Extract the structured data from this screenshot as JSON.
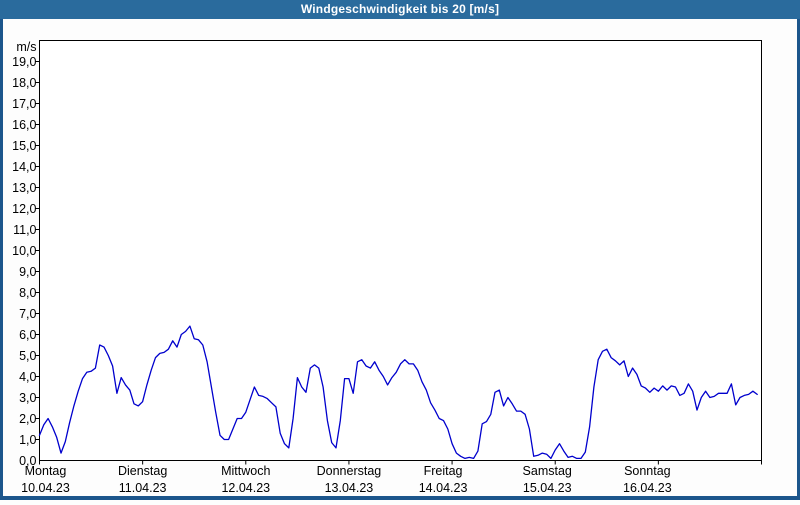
{
  "window": {
    "title": "Windgeschwindigkeit bis 20 [m/s]"
  },
  "colors": {
    "titlebar_bg": "#2a6b9d",
    "frame_border_blue": "#1c568c",
    "plot_frame": "#000000",
    "grid": "#000000",
    "line": "#0000cd",
    "text": "#000000",
    "background": "#fdfdfd"
  },
  "y_axis": {
    "unit_label": "m/s",
    "tick_labels": [
      "19,0",
      "18,0",
      "17,0",
      "16,0",
      "15,0",
      "14,0",
      "13,0",
      "12,0",
      "11,0",
      "10,0",
      "9,0",
      "8,0",
      "7,0",
      "6,0",
      "5,0",
      "4,0",
      "3,0",
      "2,0",
      "1,0",
      "0,0"
    ]
  },
  "x_axis": {
    "days": [
      {
        "name": "Montag",
        "date": "10.04.23"
      },
      {
        "name": "Dienstag",
        "date": "11.04.23"
      },
      {
        "name": "Mittwoch",
        "date": "12.04.23"
      },
      {
        "name": "Donnerstag",
        "date": "13.04.23"
      },
      {
        "name": "Freitag",
        "date": "14.04.23"
      },
      {
        "name": "Samstag",
        "date": "15.04.23"
      },
      {
        "name": "Sonntag",
        "date": "16.04.23"
      }
    ]
  },
  "chart_data": {
    "type": "line",
    "title": "Windgeschwindigkeit bis 20 [m/s]",
    "xlabel": "",
    "ylabel": "m/s",
    "ylim": [
      0,
      20
    ],
    "y_gridline_step": 1,
    "grid": true,
    "legend": false,
    "x_unit": "hours",
    "x_hours_start": 0,
    "x_hours_step": 1,
    "x_days": [
      "Montag 10.04.23",
      "Dienstag 11.04.23",
      "Mittwoch 12.04.23",
      "Donnerstag 13.04.23",
      "Freitag 14.04.23",
      "Samstag 15.04.23",
      "Sonntag 16.04.23"
    ],
    "series": [
      {
        "name": "Windgeschwindigkeit [m/s]",
        "color": "#0000cd",
        "values": [
          1.2,
          1.7,
          2.0,
          1.6,
          1.1,
          0.35,
          0.9,
          1.8,
          2.6,
          3.3,
          3.9,
          4.2,
          4.25,
          4.4,
          5.5,
          5.4,
          5.0,
          4.5,
          3.2,
          3.95,
          3.6,
          3.35,
          2.7,
          2.6,
          2.8,
          3.6,
          4.3,
          4.9,
          5.1,
          5.15,
          5.3,
          5.7,
          5.4,
          6.0,
          6.15,
          6.4,
          5.8,
          5.75,
          5.5,
          4.7,
          3.5,
          2.3,
          1.2,
          1.0,
          1.0,
          1.5,
          2.0,
          2.0,
          2.3,
          2.9,
          3.5,
          3.1,
          3.05,
          2.95,
          2.75,
          2.55,
          1.3,
          0.8,
          0.6,
          2.0,
          3.95,
          3.5,
          3.25,
          4.4,
          4.55,
          4.4,
          3.5,
          1.9,
          0.85,
          0.6,
          1.9,
          3.9,
          3.9,
          3.2,
          4.7,
          4.8,
          4.5,
          4.4,
          4.7,
          4.3,
          4.0,
          3.6,
          3.95,
          4.2,
          4.6,
          4.8,
          4.6,
          4.6,
          4.3,
          3.75,
          3.35,
          2.75,
          2.4,
          2.0,
          1.9,
          1.5,
          0.8,
          0.35,
          0.2,
          0.1,
          0.15,
          0.1,
          0.45,
          1.75,
          1.85,
          2.2,
          3.25,
          3.35,
          2.6,
          3.0,
          2.7,
          2.35,
          2.35,
          2.2,
          1.5,
          0.2,
          0.25,
          0.35,
          0.3,
          0.1,
          0.5,
          0.8,
          0.45,
          0.15,
          0.2,
          0.1,
          0.1,
          0.4,
          1.6,
          3.5,
          4.8,
          5.2,
          5.3,
          4.9,
          4.75,
          4.55,
          4.75,
          4.0,
          4.4,
          4.1,
          3.55,
          3.45,
          3.25,
          3.45,
          3.3,
          3.55,
          3.35,
          3.55,
          3.5,
          3.1,
          3.2,
          3.65,
          3.3,
          2.4,
          3.0,
          3.3,
          3.0,
          3.05,
          3.2,
          3.2,
          3.2,
          3.65,
          2.65,
          3.0,
          3.1,
          3.15,
          3.3,
          3.15
        ]
      }
    ]
  }
}
